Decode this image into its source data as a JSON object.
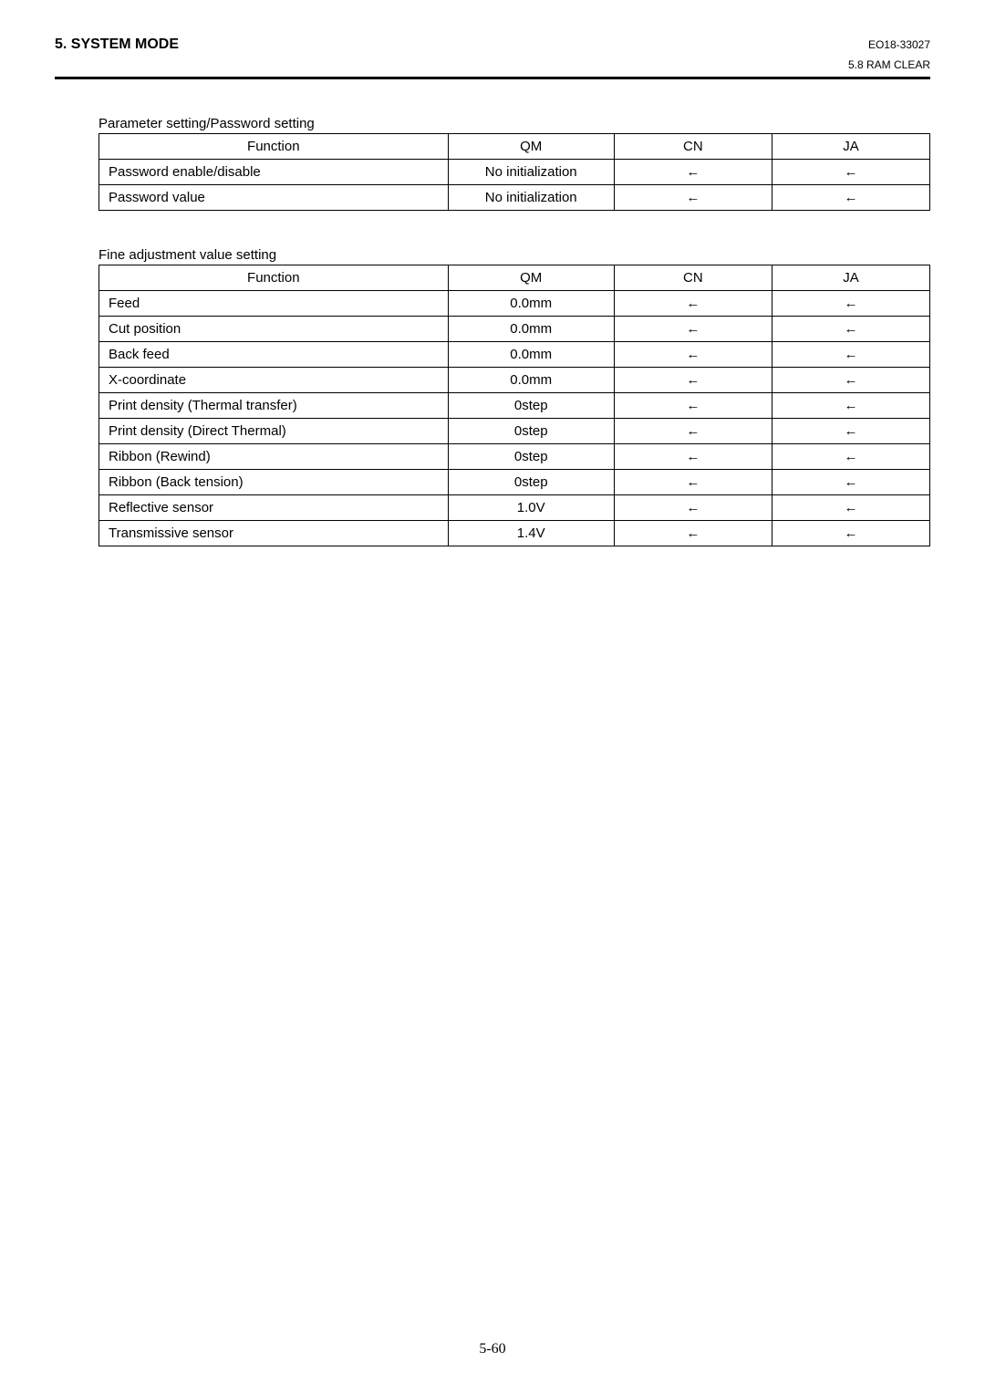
{
  "header": {
    "section_title": "5. SYSTEM MODE",
    "doc_number": "EO18-33027",
    "subsection": "5.8 RAM CLEAR"
  },
  "tables": {
    "t1": {
      "title": "Parameter setting/Password setting",
      "columns": [
        "Function",
        "QM",
        "CN",
        "JA"
      ],
      "rows": [
        {
          "func": "Password enable/disable",
          "qm": "No initialization",
          "cn": "←",
          "ja": "←"
        },
        {
          "func": "Password value",
          "qm": "No initialization",
          "cn": "←",
          "ja": "←"
        }
      ]
    },
    "t2": {
      "title": "Fine adjustment value setting",
      "columns": [
        "Function",
        "QM",
        "CN",
        "JA"
      ],
      "rows": [
        {
          "func": "Feed",
          "qm": "0.0mm",
          "cn": "←",
          "ja": "←"
        },
        {
          "func": "Cut position",
          "qm": "0.0mm",
          "cn": "←",
          "ja": "←"
        },
        {
          "func": "Back feed",
          "qm": "0.0mm",
          "cn": "←",
          "ja": "←"
        },
        {
          "func": "X-coordinate",
          "qm": "0.0mm",
          "cn": "←",
          "ja": "←"
        },
        {
          "func": "Print density (Thermal transfer)",
          "qm": "0step",
          "cn": "←",
          "ja": "←"
        },
        {
          "func": "Print density (Direct Thermal)",
          "qm": "0step",
          "cn": "←",
          "ja": "←"
        },
        {
          "func": "Ribbon (Rewind)",
          "qm": "0step",
          "cn": "←",
          "ja": "←"
        },
        {
          "func": "Ribbon (Back tension)",
          "qm": "0step",
          "cn": "←",
          "ja": "←"
        },
        {
          "func": "Reflective sensor",
          "qm": "1.0V",
          "cn": "←",
          "ja": "←"
        },
        {
          "func": "Transmissive sensor",
          "qm": "1.4V",
          "cn": "←",
          "ja": "←"
        }
      ]
    }
  },
  "page_number": "5-60"
}
